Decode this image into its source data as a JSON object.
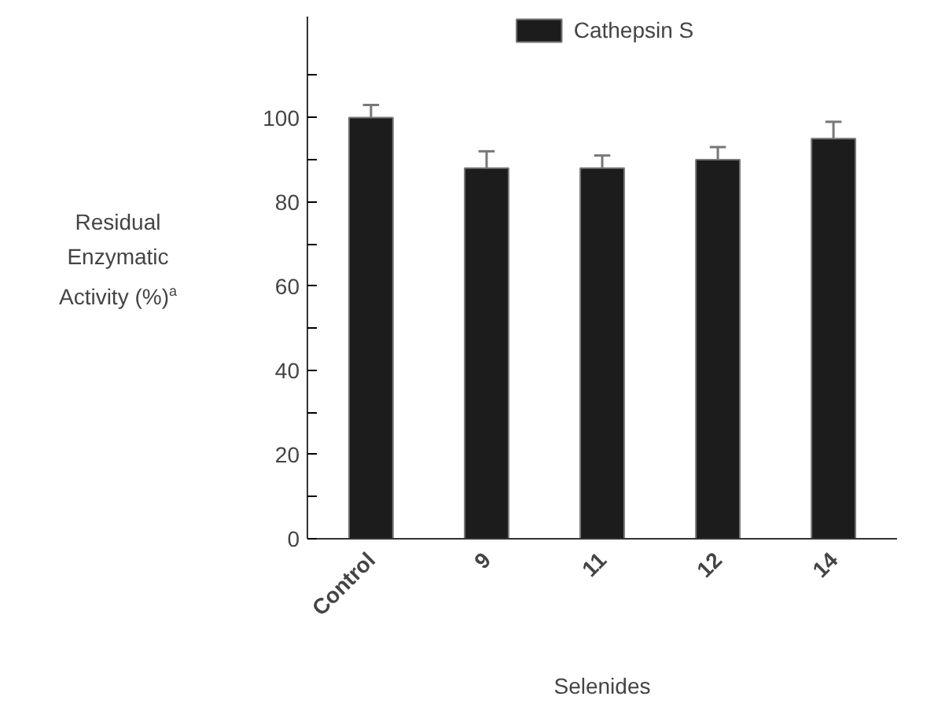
{
  "chart_data": {
    "type": "bar",
    "xlabel": "Selenides",
    "ylabel": "Residual Enzymatic Activity (%)$^{a}$",
    "categories": [
      "Control",
      "9",
      "11",
      "12",
      "14"
    ],
    "series": [
      {
        "name": "Cathepsin S",
        "color": "#1c1c1c",
        "values": [
          100,
          88,
          88,
          90,
          95
        ],
        "errors": [
          [
            100,
            103
          ],
          [
            88,
            92
          ],
          [
            88,
            91
          ],
          [
            90,
            93
          ],
          [
            95,
            99
          ]
        ]
      }
    ],
    "ylim": [
      0,
      124
    ],
    "yticks": [
      0,
      {
        "value": 10,
        "label": null
      },
      20,
      {
        "value": 30,
        "label": null
      },
      40,
      {
        "value": 50,
        "label": null
      },
      60,
      {
        "value": 70,
        "label": null
      },
      80,
      {
        "value": 90,
        "label": null
      },
      100,
      {
        "value": 110,
        "label": null
      }
    ],
    "grid": false,
    "legend": "top"
  }
}
